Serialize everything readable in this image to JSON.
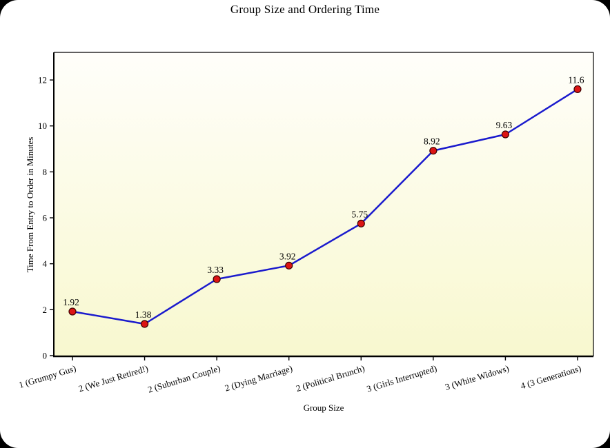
{
  "page": {
    "background_color": "#000000",
    "frame_color": "#ffffff"
  },
  "chart_data": {
    "type": "line",
    "title": "Group Size and Ordering Time",
    "xlabel": "Group Size",
    "ylabel": "Time From Entry to Order in Minutes",
    "categories": [
      "1 (Grumpy Gus)",
      "2 (We Just Retired!)",
      "2 (Suburban Couple)",
      "2 (Dying Marriage)",
      "2 (Political Brunch)",
      "3 (Girls Interrupted)",
      "3 (White Widows)",
      "4 (3 Generations)"
    ],
    "values": [
      1.92,
      1.38,
      3.33,
      3.92,
      5.75,
      8.92,
      9.63,
      11.6
    ],
    "point_labels": [
      "1.92",
      "1.38",
      "3.33",
      "3.92",
      "5.75",
      "8.92",
      "9.63",
      "11.6"
    ],
    "yticks": [
      0,
      2,
      4,
      6,
      8,
      10,
      12
    ],
    "ylim": [
      0,
      13.2
    ],
    "grid": false,
    "legend": "none",
    "line_color": "#1a1acd",
    "marker_color": "#dc1414",
    "marker_edge_color": "#3a0000",
    "axis_color": "#000000",
    "plot_bg_top": "#fffefa",
    "plot_bg_bottom": "#f8f8cf"
  }
}
